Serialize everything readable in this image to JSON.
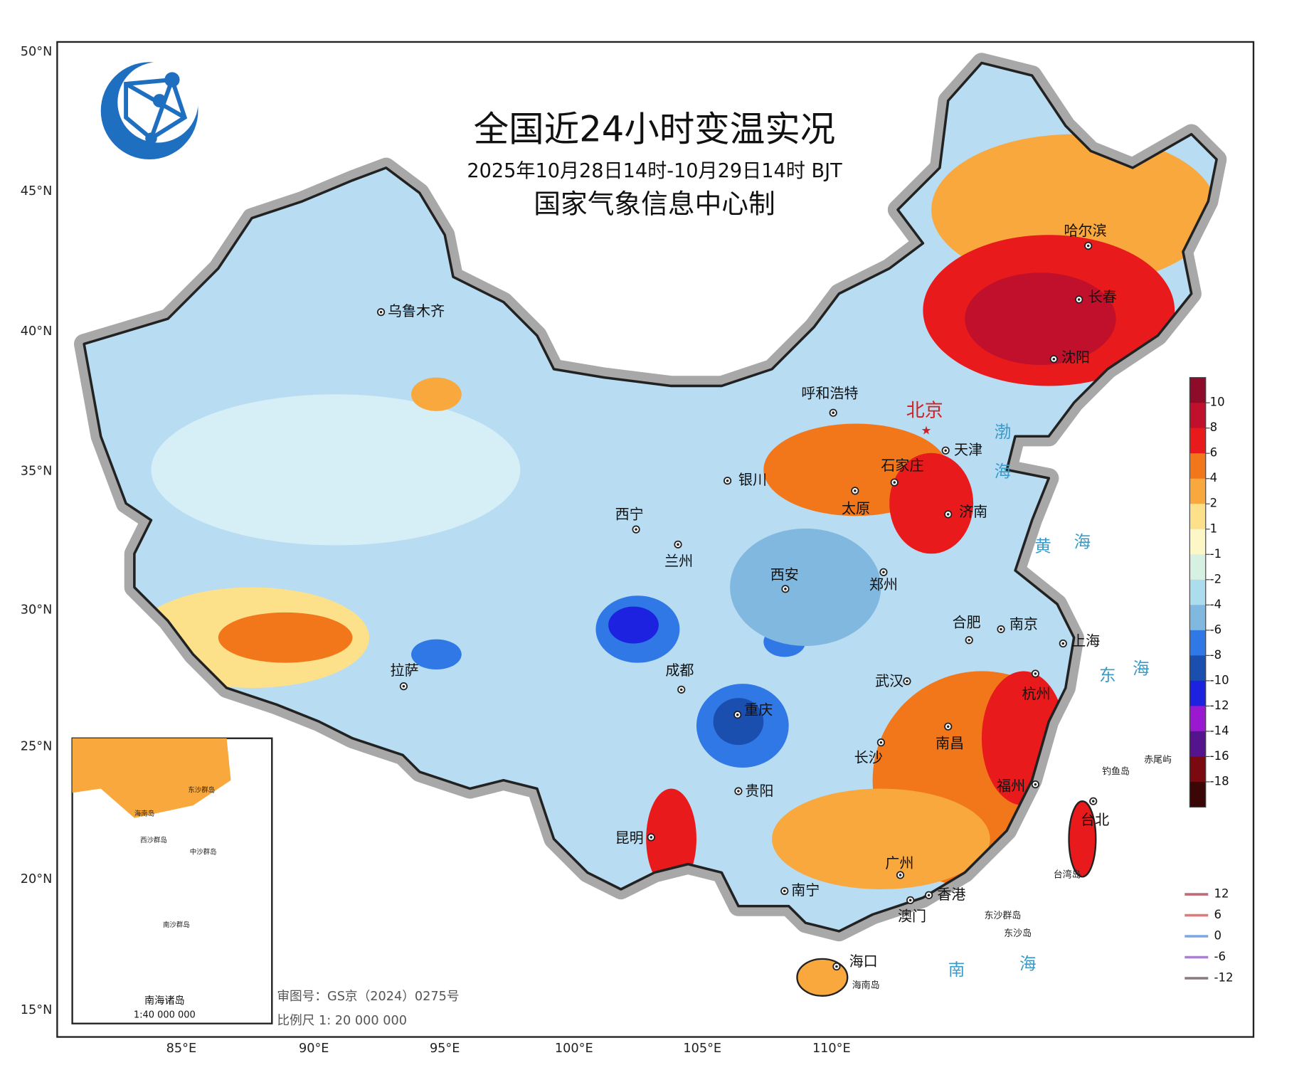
{
  "title": "全国近24小时变温实况",
  "subtitle": "2025年10月28日14时-10月29日14时 BJT",
  "producer": "国家气象信息中心制",
  "latitude_labels": [
    "50°N",
    "45°N",
    "40°N",
    "35°N",
    "30°N",
    "25°N",
    "20°N",
    "15°N"
  ],
  "longitude_labels": [
    "85°E",
    "90°E",
    "95°E",
    "100°E",
    "105°E",
    "110°E"
  ],
  "cities": [
    {
      "name": "乌鲁木齐"
    },
    {
      "name": "呼和浩特"
    },
    {
      "name": "北京"
    },
    {
      "name": "天津"
    },
    {
      "name": "石家庄"
    },
    {
      "name": "银川"
    },
    {
      "name": "太原"
    },
    {
      "name": "济南"
    },
    {
      "name": "西宁"
    },
    {
      "name": "兰州"
    },
    {
      "name": "郑州"
    },
    {
      "name": "西安"
    },
    {
      "name": "合肥"
    },
    {
      "name": "南京"
    },
    {
      "name": "上海"
    },
    {
      "name": "拉萨"
    },
    {
      "name": "成都"
    },
    {
      "name": "武汉"
    },
    {
      "name": "杭州"
    },
    {
      "name": "重庆"
    },
    {
      "name": "南昌"
    },
    {
      "name": "长沙"
    },
    {
      "name": "福州"
    },
    {
      "name": "贵阳"
    },
    {
      "name": "台北"
    },
    {
      "name": "昆明"
    },
    {
      "name": "广州"
    },
    {
      "name": "南宁"
    },
    {
      "name": "香港"
    },
    {
      "name": "澳门"
    },
    {
      "name": "海口"
    },
    {
      "name": "哈尔滨"
    },
    {
      "name": "长春"
    },
    {
      "name": "沈阳"
    }
  ],
  "sea_labels": [
    "渤",
    "海",
    "黄",
    "海",
    "东",
    "海",
    "南",
    "海"
  ],
  "island_labels": [
    "钓鱼岛",
    "赤尾屿",
    "台湾岛",
    "东沙群岛",
    "东沙岛",
    "海南岛"
  ],
  "legend": {
    "ticks": [
      10,
      8,
      6,
      4,
      2,
      1,
      -1,
      -2,
      -4,
      -6,
      -8,
      -10,
      -12,
      -14,
      -16,
      -18
    ],
    "colors": [
      "#8c0c2a",
      "#c0102c",
      "#e81a1c",
      "#f2761a",
      "#f8a83c",
      "#fde08a",
      "#fdf6c6",
      "#d6f0e2",
      "#aedcef",
      "#80b8e0",
      "#2f78e6",
      "#1a4fb0",
      "#1c22e0",
      "#9a18d0",
      "#55148e",
      "#7a0a10",
      "#3a0606"
    ]
  },
  "contour_legend": {
    "values": [
      12,
      6,
      0,
      -6,
      -12
    ],
    "colors": [
      "#c06a7a",
      "#e07a7a",
      "#7aa8e0",
      "#a880d0",
      "#8a7a80"
    ]
  },
  "review_number": "审图号：GS京（2024）0275号",
  "scale": "比例尺 1: 20 000 000",
  "inset": {
    "title": "南海诸岛",
    "scale": "1:40 000 000",
    "labels": [
      "海南岛",
      "东沙群岛",
      "西沙群岛",
      "中沙群岛",
      "南沙群岛"
    ]
  }
}
